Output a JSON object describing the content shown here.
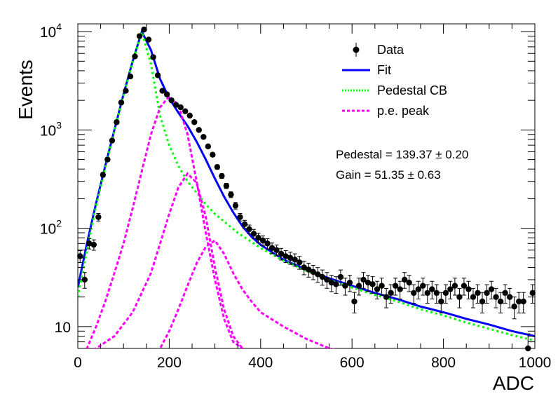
{
  "chart_data": {
    "type": "scatter",
    "xlabel": "ADC",
    "ylabel": "Events",
    "xlim": [
      0,
      1000
    ],
    "ylim": [
      6,
      12000
    ],
    "yscale": "log",
    "x_ticks": [
      "0",
      "200",
      "400",
      "600",
      "800",
      "1000"
    ],
    "y_ticks": [
      {
        "value": 10,
        "base": "10",
        "exp": ""
      },
      {
        "value": 100,
        "base": "10",
        "exp": "2"
      },
      {
        "value": 1000,
        "base": "10",
        "exp": "3"
      },
      {
        "value": 10000,
        "base": "10",
        "exp": "4"
      }
    ],
    "grid": false,
    "legend_position": "top-right",
    "legend": [
      {
        "label": "Data",
        "style": "marker",
        "color": "#000000"
      },
      {
        "label": "Fit",
        "style": "solid",
        "color": "#0000ff"
      },
      {
        "label": "Pedestal CB",
        "style": "dotted",
        "color": "#00ff00"
      },
      {
        "label": "p.e. peak",
        "style": "dashed",
        "color": "#ff00ff"
      }
    ],
    "annotations": [
      {
        "text": "Pedestal = 139.37 ± 0.20"
      },
      {
        "text": "Gain = 51.35 ± 0.63"
      }
    ],
    "data_points": {
      "x": [
        5,
        15,
        25,
        35,
        45,
        55,
        65,
        75,
        85,
        95,
        105,
        115,
        125,
        135,
        145,
        155,
        165,
        175,
        185,
        195,
        205,
        215,
        225,
        235,
        245,
        255,
        265,
        275,
        285,
        295,
        305,
        315,
        325,
        335,
        345,
        355,
        365,
        375,
        385,
        395,
        405,
        415,
        425,
        435,
        445,
        455,
        465,
        475,
        485,
        495,
        505,
        515,
        525,
        535,
        545,
        555,
        565,
        575,
        585,
        595,
        605,
        615,
        625,
        635,
        645,
        655,
        665,
        675,
        685,
        695,
        705,
        715,
        725,
        735,
        745,
        755,
        765,
        775,
        785,
        795,
        805,
        815,
        825,
        835,
        845,
        855,
        865,
        875,
        885,
        895,
        905,
        915,
        925,
        935,
        945,
        955,
        965,
        975,
        985,
        995
      ],
      "y": [
        52,
        30,
        70,
        68,
        130,
        350,
        500,
        780,
        1200,
        1900,
        2500,
        3500,
        5600,
        9000,
        10500,
        8300,
        5500,
        3600,
        2500,
        2300,
        2000,
        1800,
        1700,
        1550,
        1400,
        1200,
        1000,
        850,
        680,
        560,
        420,
        340,
        270,
        220,
        170,
        130,
        110,
        98,
        88,
        80,
        75,
        70,
        63,
        60,
        55,
        52,
        50,
        48,
        45,
        40,
        38,
        36,
        34,
        32,
        30,
        28,
        27,
        32,
        26,
        28,
        18,
        26,
        30,
        28,
        27,
        24,
        26,
        20,
        22,
        26,
        24,
        30,
        28,
        22,
        24,
        26,
        22,
        24,
        22,
        18,
        22,
        24,
        26,
        20,
        26,
        24,
        20,
        22,
        18,
        22,
        24,
        20,
        18,
        22,
        20,
        16,
        18,
        18,
        6,
        22
      ]
    },
    "series": [
      {
        "name": "Fit",
        "color": "#0000ff",
        "x": [
          0,
          20,
          40,
          60,
          80,
          100,
          120,
          140,
          160,
          180,
          200,
          220,
          240,
          260,
          280,
          300,
          320,
          340,
          360,
          380,
          400,
          450,
          500,
          550,
          600,
          650,
          700,
          750,
          800,
          850,
          900,
          950,
          1000
        ],
        "y": [
          25,
          70,
          180,
          430,
          1000,
          2300,
          5000,
          10000,
          6500,
          3300,
          2100,
          1500,
          1100,
          760,
          500,
          320,
          210,
          145,
          105,
          82,
          68,
          48,
          38,
          31,
          26,
          22,
          19,
          16,
          14,
          12,
          10.5,
          9,
          8
        ]
      },
      {
        "name": "Pedestal CB",
        "color": "#00ff00",
        "x": [
          0,
          20,
          40,
          60,
          80,
          100,
          120,
          140,
          160,
          180,
          200,
          220,
          240,
          260,
          280,
          300,
          350,
          400,
          450,
          500,
          550,
          600,
          650,
          700,
          750,
          800,
          850,
          900,
          950,
          1000
        ],
        "y": [
          20,
          60,
          170,
          410,
          980,
          2250,
          4900,
          9900,
          4700,
          1400,
          700,
          430,
          300,
          230,
          175,
          140,
          90,
          63,
          47,
          37,
          30,
          25,
          21,
          18,
          15,
          13,
          11,
          9.5,
          8.2,
          7.2
        ]
      },
      {
        "name": "p.e. peak 1",
        "color": "#ff00ff",
        "x": [
          0,
          20,
          40,
          60,
          80,
          100,
          120,
          140,
          160,
          180,
          200,
          220,
          240,
          260,
          280,
          300,
          320,
          340,
          360,
          380,
          400
        ],
        "y": [
          5,
          6,
          10,
          18,
          35,
          70,
          160,
          380,
          900,
          1700,
          2200,
          1800,
          900,
          300,
          90,
          30,
          12,
          7,
          6,
          5.5,
          5
        ]
      },
      {
        "name": "p.e. peak 2",
        "color": "#ff00ff",
        "x": [
          0,
          40,
          80,
          120,
          160,
          180,
          200,
          220,
          240,
          260,
          280,
          300,
          320,
          340,
          360,
          380
        ],
        "y": [
          5,
          6,
          8,
          14,
          35,
          70,
          140,
          260,
          360,
          290,
          130,
          40,
          15,
          8,
          6,
          5
        ]
      },
      {
        "name": "p.e. peak 3",
        "color": "#ff00ff",
        "x": [
          150,
          180,
          200,
          220,
          240,
          260,
          280,
          300,
          320,
          340,
          360,
          380,
          400,
          450,
          500,
          550,
          600,
          650
        ],
        "y": [
          5,
          6,
          9,
          15,
          26,
          44,
          65,
          75,
          55,
          35,
          24,
          18,
          14,
          10,
          7.5,
          6,
          5.5,
          5
        ]
      }
    ]
  }
}
